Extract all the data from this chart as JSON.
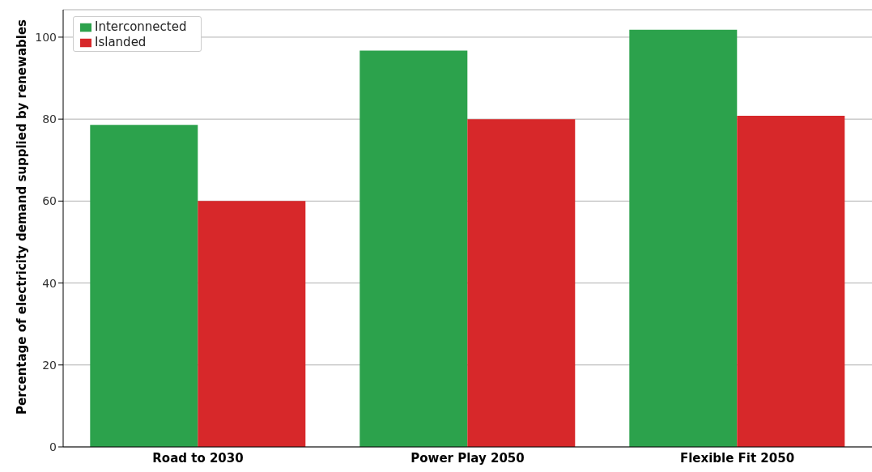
{
  "chart_data": {
    "type": "bar",
    "ylabel": "Percentage of electricity demand supplied by renewables",
    "categories": [
      "Road to 2030",
      "Power Play 2050",
      "Flexible Fit 2050"
    ],
    "series": [
      {
        "name": "Interconnected",
        "color": "#2ca24c",
        "values": [
          78.6,
          96.7,
          101.8
        ]
      },
      {
        "name": "Islanded",
        "color": "#d7282a",
        "values": [
          60.0,
          80.0,
          80.8
        ]
      }
    ],
    "ylim": [
      0,
      106.7
    ],
    "yticks": [
      0,
      20,
      40,
      60,
      80,
      100
    ],
    "grid": "y",
    "legend": "top left"
  }
}
